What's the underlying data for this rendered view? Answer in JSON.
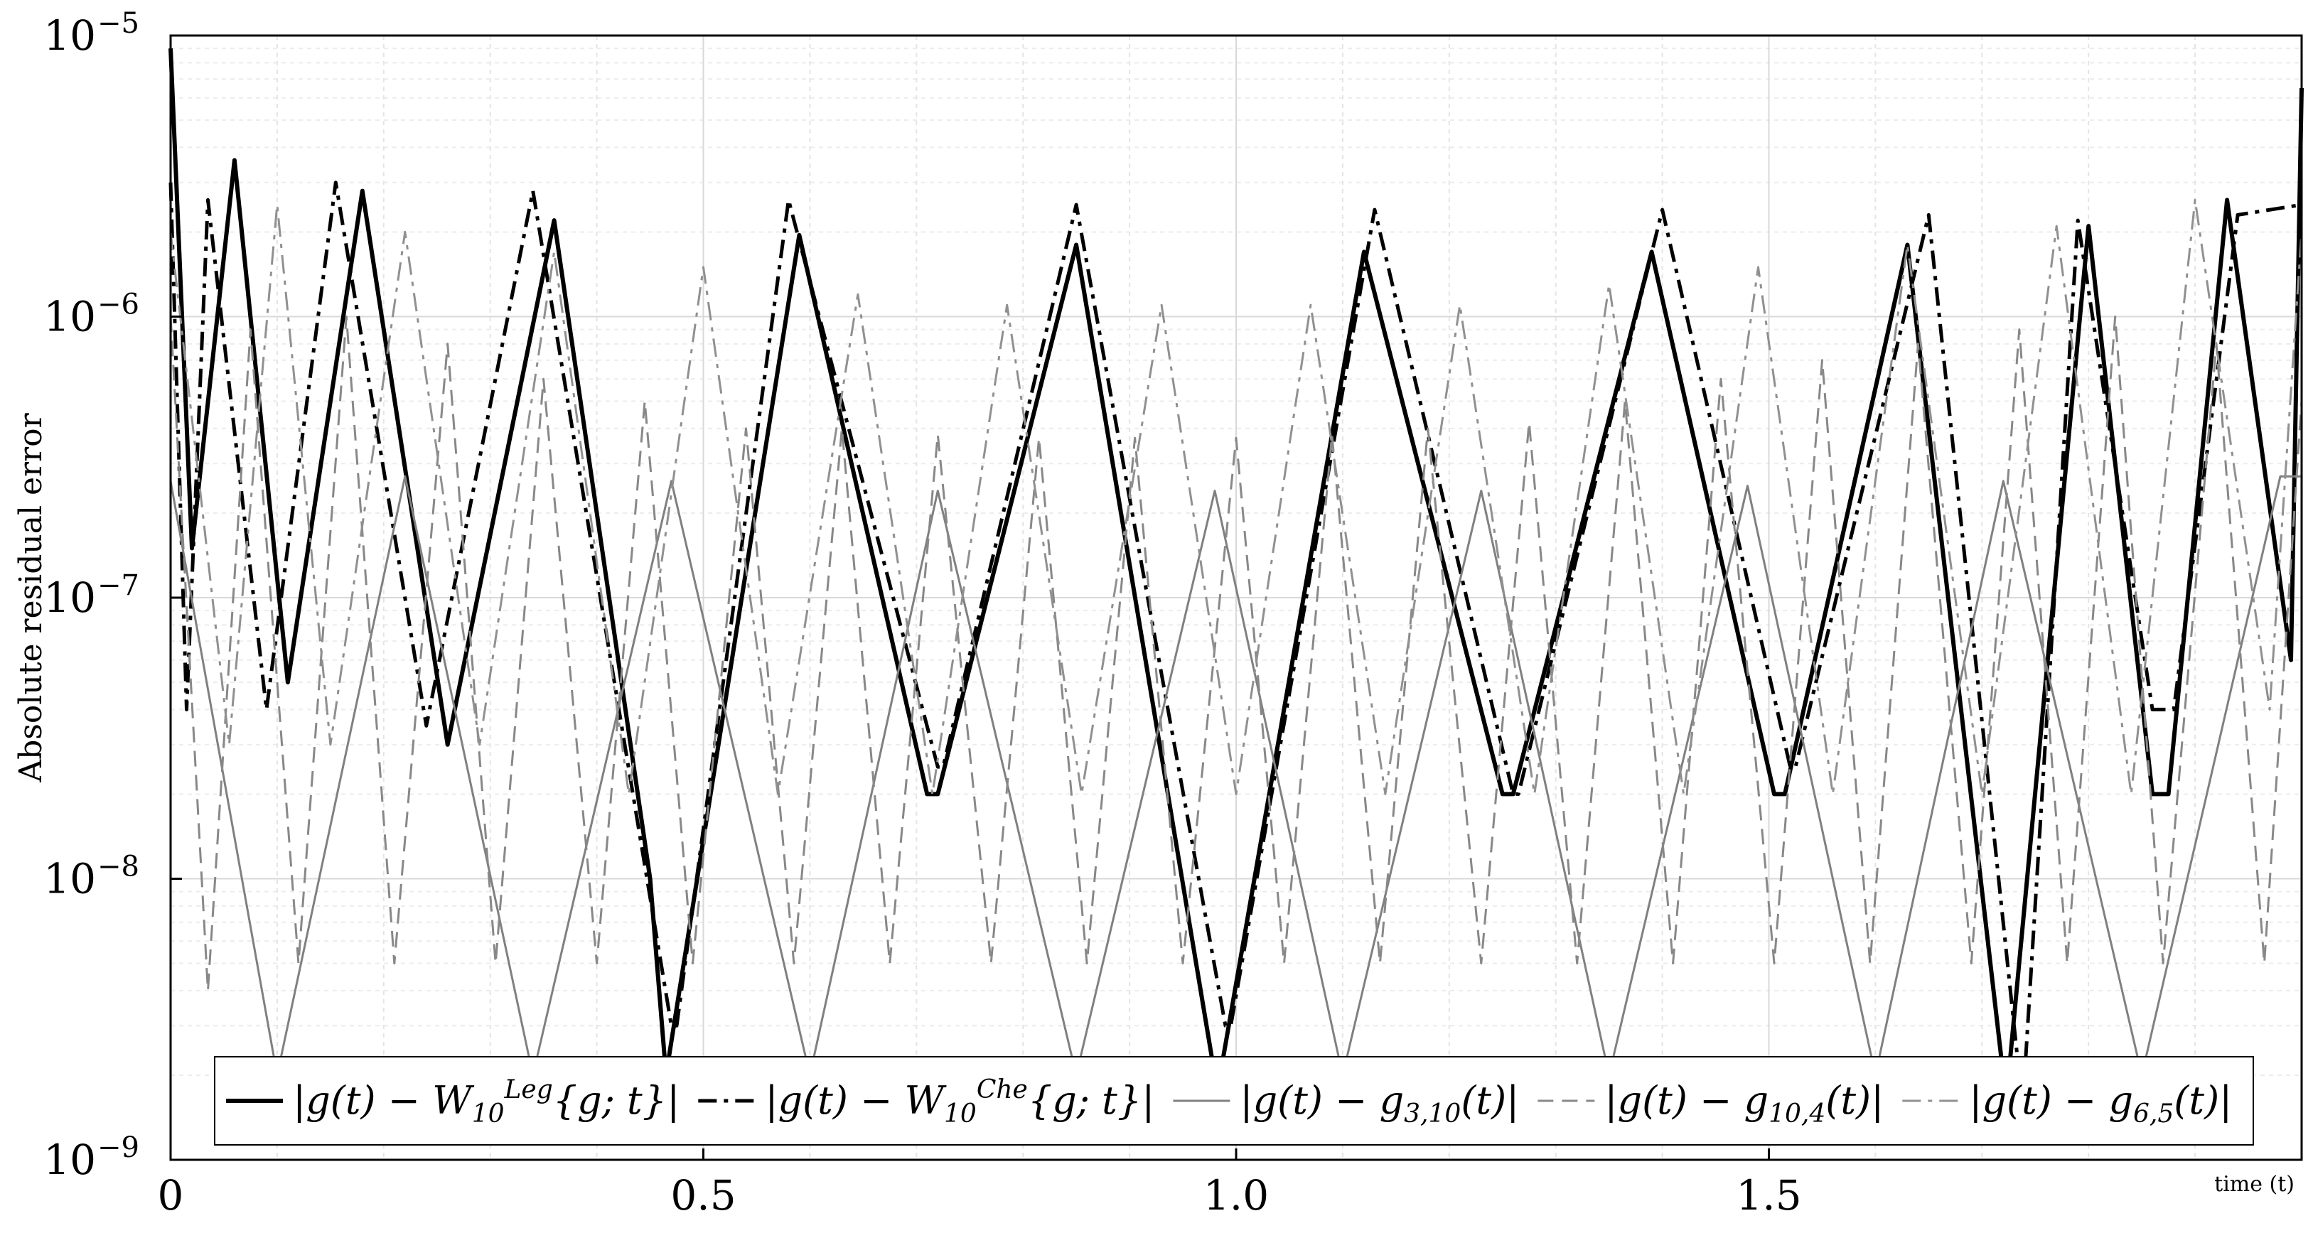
{
  "chart_data": {
    "type": "line",
    "title": "",
    "xlabel": "time (t)",
    "ylabel": "Absolute residual error",
    "xlim": [
      0,
      2
    ],
    "ylim": [
      1e-09,
      1e-05
    ],
    "yscale": "log",
    "grid": true,
    "minor_grid": true,
    "x_ticks": [
      0,
      0.5,
      1.0,
      1.5
    ],
    "x_tick_labels": [
      "0",
      "0.5",
      "1.0",
      "1.5"
    ],
    "y_ticks": [
      1e-09,
      1e-08,
      1e-07,
      1e-06,
      1e-05
    ],
    "y_tick_labels": [
      {
        "base": "10",
        "exp": "−9"
      },
      {
        "base": "10",
        "exp": "−8"
      },
      {
        "base": "10",
        "exp": "−7"
      },
      {
        "base": "10",
        "exp": "−6"
      },
      {
        "base": "10",
        "exp": "−5"
      }
    ],
    "legend_placement": "bottom",
    "series": [
      {
        "name": "|g(t) − W10Leg{g;t}|",
        "color": "#000000",
        "style": "solid",
        "width": 6,
        "x": [
          0,
          0.02,
          0.06,
          0.11,
          0.18,
          0.26,
          0.36,
          0.45,
          0.465,
          0.59,
          0.71,
          0.72,
          0.85,
          0.98,
          0.985,
          1.12,
          1.25,
          1.26,
          1.39,
          1.505,
          1.515,
          1.63,
          1.72,
          1.725,
          1.8,
          1.86,
          1.875,
          1.93,
          1.99,
          2.0
        ],
        "y": [
          9e-06,
          1.5e-07,
          3.6e-06,
          5e-08,
          2.8e-06,
          3e-08,
          2.2e-06,
          1e-08,
          2e-09,
          1.95e-06,
          2e-08,
          2e-08,
          1.8e-06,
          2e-09,
          2e-09,
          1.7e-06,
          2e-08,
          2e-08,
          1.7e-06,
          2e-08,
          2e-08,
          1.8e-06,
          2e-09,
          2e-09,
          2.1e-06,
          2e-08,
          2e-08,
          2.6e-06,
          6e-08,
          6.5e-06
        ]
      },
      {
        "name": "|g(t) − W10Che{g;t}|",
        "color": "#000000",
        "style": "dashdot",
        "width": 5,
        "x": [
          0,
          0.015,
          0.035,
          0.09,
          0.155,
          0.24,
          0.34,
          0.47,
          0.475,
          0.58,
          0.72,
          0.725,
          0.85,
          0.99,
          0.995,
          1.13,
          1.26,
          1.265,
          1.4,
          1.52,
          1.525,
          1.65,
          1.735,
          1.74,
          1.79,
          1.86,
          1.88,
          1.94,
          2.0
        ],
        "y": [
          3e-06,
          4e-08,
          2.6e-06,
          4e-08,
          3e-06,
          3.5e-08,
          2.8e-06,
          3e-09,
          3e-09,
          2.6e-06,
          2.5e-08,
          2.5e-08,
          2.5e-06,
          3e-09,
          3e-09,
          2.4e-06,
          2e-08,
          2e-08,
          2.4e-06,
          2.5e-08,
          2.5e-08,
          2.3e-06,
          2e-09,
          2e-09,
          2.2e-06,
          4e-08,
          4e-08,
          2.3e-06,
          2.5e-06
        ]
      },
      {
        "name": "|g(t) − g3,10(t)|",
        "color": "#808080",
        "style": "solid",
        "width": 3,
        "x": [
          0,
          0.1,
          0.22,
          0.34,
          0.47,
          0.6,
          0.72,
          0.85,
          0.98,
          1.1,
          1.23,
          1.35,
          1.48,
          1.6,
          1.72,
          1.85,
          1.98,
          2.0
        ],
        "y": [
          2.6e-07,
          2e-09,
          2.7e-07,
          2e-09,
          2.6e-07,
          2e-09,
          2.4e-07,
          2e-09,
          2.4e-07,
          2e-09,
          2.4e-07,
          2e-09,
          2.5e-07,
          2e-09,
          2.6e-07,
          2e-09,
          2.7e-07,
          2.7e-07
        ]
      },
      {
        "name": "|g(t) − g10,4(t)|",
        "color": "#888888",
        "style": "dashed",
        "width": 3,
        "x": [
          0,
          0.035,
          0.075,
          0.12,
          0.165,
          0.21,
          0.26,
          0.305,
          0.35,
          0.4,
          0.445,
          0.49,
          0.54,
          0.585,
          0.63,
          0.675,
          0.72,
          0.77,
          0.815,
          0.86,
          0.905,
          0.95,
          1.0,
          1.045,
          1.09,
          1.135,
          1.18,
          1.23,
          1.275,
          1.32,
          1.365,
          1.41,
          1.455,
          1.505,
          1.55,
          1.595,
          1.64,
          1.69,
          1.735,
          1.78,
          1.825,
          1.87,
          1.92,
          1.965,
          2.0
        ],
        "y": [
          1e-06,
          4e-09,
          9e-07,
          5e-09,
          1e-06,
          5e-09,
          8e-07,
          5e-09,
          6e-07,
          5e-09,
          5e-07,
          5e-09,
          4e-07,
          5e-09,
          4e-07,
          5e-09,
          3.8e-07,
          5e-09,
          3.7e-07,
          5e-09,
          3.7e-07,
          5e-09,
          3.7e-07,
          5e-09,
          3.8e-07,
          5e-09,
          4e-07,
          5e-09,
          4.2e-07,
          5e-09,
          5e-07,
          5e-09,
          6e-07,
          5e-09,
          7e-07,
          5e-09,
          8e-07,
          5e-09,
          9e-07,
          5e-09,
          1e-06,
          5e-09,
          8e-07,
          5e-09,
          5e-07
        ]
      },
      {
        "name": "|g(t) − g6,5(t)|",
        "color": "#909090",
        "style": "dashdot",
        "width": 3,
        "x": [
          0,
          0.055,
          0.1,
          0.15,
          0.22,
          0.29,
          0.36,
          0.43,
          0.5,
          0.57,
          0.645,
          0.715,
          0.785,
          0.855,
          0.93,
          1.0,
          1.07,
          1.14,
          1.21,
          1.28,
          1.35,
          1.42,
          1.49,
          1.56,
          1.63,
          1.7,
          1.77,
          1.84,
          1.9,
          1.97,
          2.0
        ],
        "y": [
          2e-06,
          3e-08,
          2.5e-06,
          3e-08,
          2e-06,
          3e-08,
          1.7e-06,
          2e-08,
          1.5e-06,
          2e-08,
          1.2e-06,
          2e-08,
          1.1e-06,
          2e-08,
          1.1e-06,
          2e-08,
          1.1e-06,
          2e-08,
          1.1e-06,
          2e-08,
          1.3e-06,
          2e-08,
          1.5e-06,
          2e-08,
          1.8e-06,
          2e-08,
          2.1e-06,
          2e-08,
          2.6e-06,
          4e-08,
          2e-06
        ]
      }
    ],
    "legend": [
      {
        "style": "solid",
        "color": "#000000",
        "width": 6,
        "parts": [
          [
            "|g(t) − W",
            "n"
          ],
          [
            "10",
            "sub"
          ],
          [
            "Leg",
            "sup"
          ],
          [
            "{g; t}|",
            "n"
          ]
        ]
      },
      {
        "style": "dashdot",
        "color": "#000000",
        "width": 5,
        "parts": [
          [
            "|g(t) − W",
            "n"
          ],
          [
            "10",
            "sub"
          ],
          [
            "Che",
            "sup"
          ],
          [
            "{g; t}|",
            "n"
          ]
        ]
      },
      {
        "style": "solid",
        "color": "#808080",
        "width": 3,
        "parts": [
          [
            "|g(t) − g",
            "n"
          ],
          [
            "3,10",
            "sub"
          ],
          [
            "(t)|",
            "n"
          ]
        ]
      },
      {
        "style": "dashed",
        "color": "#888888",
        "width": 3,
        "parts": [
          [
            "|g(t) − g",
            "n"
          ],
          [
            "10,4",
            "sub"
          ],
          [
            "(t)|",
            "n"
          ]
        ]
      },
      {
        "style": "dashdot",
        "color": "#909090",
        "width": 3,
        "parts": [
          [
            "|g(t) − g",
            "n"
          ],
          [
            "6,5",
            "sub"
          ],
          [
            "(t)|",
            "n"
          ]
        ]
      }
    ]
  }
}
